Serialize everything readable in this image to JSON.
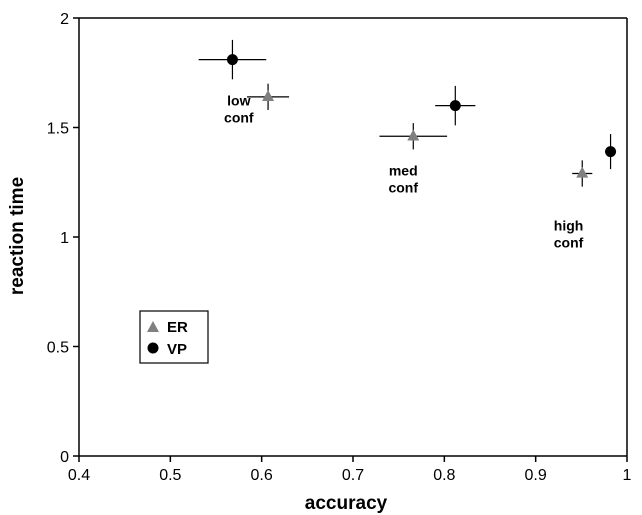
{
  "chart_data": {
    "type": "scatter",
    "xlabel": "accuracy",
    "ylabel": "reaction time",
    "xlim": [
      0.4,
      1.0
    ],
    "ylim": [
      0,
      2
    ],
    "xticks": [
      "0.4",
      "0.5",
      "0.6",
      "0.7",
      "0.8",
      "0.9",
      "1"
    ],
    "yticks": [
      "0",
      "0.5",
      "1",
      "1.5",
      "2"
    ],
    "legend_position": "lower-left",
    "series": [
      {
        "name": "ER",
        "marker": "triangle",
        "color": "#808080",
        "points": [
          {
            "x": 0.607,
            "y": 1.64,
            "xerr": 0.023,
            "yerr": 0.06
          },
          {
            "x": 0.766,
            "y": 1.46,
            "xerr": 0.037,
            "yerr": 0.06
          },
          {
            "x": 0.951,
            "y": 1.29,
            "xerr": 0.011,
            "yerr": 0.06
          }
        ]
      },
      {
        "name": "VP",
        "marker": "circle",
        "color": "#000000",
        "points": [
          {
            "x": 0.568,
            "y": 1.81,
            "xerr": 0.037,
            "yerr": 0.09
          },
          {
            "x": 0.812,
            "y": 1.6,
            "xerr": 0.022,
            "yerr": 0.09
          },
          {
            "x": 0.982,
            "y": 1.39,
            "xerr": 0.006,
            "yerr": 0.08
          }
        ]
      }
    ],
    "annotations": [
      {
        "id": "low",
        "lines": [
          "low",
          "conf"
        ],
        "x": 0.575,
        "y": 1.6
      },
      {
        "id": "med",
        "lines": [
          "med",
          "conf"
        ],
        "x": 0.755,
        "y": 1.28
      },
      {
        "id": "high",
        "lines": [
          "high",
          "conf"
        ],
        "x": 0.936,
        "y": 1.03
      }
    ]
  }
}
